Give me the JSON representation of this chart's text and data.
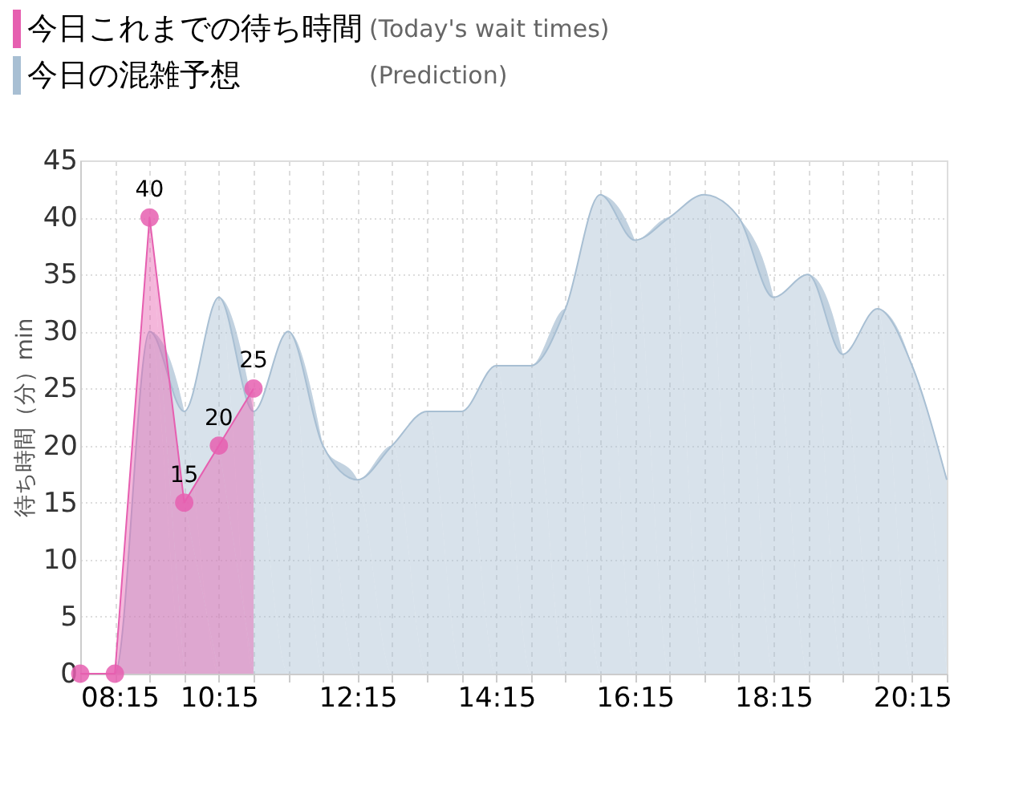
{
  "chart_data": {
    "type": "area",
    "ylabel": "待ち時間（分）min",
    "xlim": [
      8.25,
      20.75
    ],
    "xticks": [
      {
        "value": 8.25,
        "label": "08:15"
      },
      {
        "value": 8.75,
        "label": null
      },
      {
        "value": 9.25,
        "label": null
      },
      {
        "value": 9.75,
        "label": null
      },
      {
        "value": 10.25,
        "label": "10:15"
      },
      {
        "value": 10.75,
        "label": null
      },
      {
        "value": 11.25,
        "label": null
      },
      {
        "value": 11.75,
        "label": null
      },
      {
        "value": 12.25,
        "label": "12:15"
      },
      {
        "value": 12.75,
        "label": null
      },
      {
        "value": 13.25,
        "label": null
      },
      {
        "value": 13.75,
        "label": null
      },
      {
        "value": 14.25,
        "label": "14:15"
      },
      {
        "value": 14.75,
        "label": null
      },
      {
        "value": 15.25,
        "label": null
      },
      {
        "value": 15.75,
        "label": null
      },
      {
        "value": 16.25,
        "label": "16:15"
      },
      {
        "value": 16.75,
        "label": null
      },
      {
        "value": 17.25,
        "label": null
      },
      {
        "value": 17.75,
        "label": null
      },
      {
        "value": 18.25,
        "label": "18:15"
      },
      {
        "value": 18.75,
        "label": null
      },
      {
        "value": 19.25,
        "label": null
      },
      {
        "value": 19.75,
        "label": null
      },
      {
        "value": 20.25,
        "label": "20:15"
      },
      {
        "value": 20.75,
        "label": null
      }
    ],
    "ylim": [
      0,
      45
    ],
    "yticks": [
      0,
      5,
      10,
      15,
      20,
      25,
      30,
      35,
      40,
      45
    ],
    "grid": true,
    "legend": "top left",
    "marker": "circle",
    "annotations": [
      "(Today's wait times)",
      "(Prediction)"
    ],
    "series": [
      {
        "name": "今日の混雑予想",
        "color": "#a8bfd3",
        "marker": "none",
        "x": [
          8.25,
          8.75,
          9.25,
          9.75,
          10.25,
          10.75,
          11.25,
          11.75,
          12.25,
          12.75,
          13.25,
          13.75,
          14.25,
          14.75,
          15.25,
          15.75,
          16.25,
          16.75,
          17.25,
          17.75,
          18.25,
          18.75,
          19.25,
          19.75,
          20.25,
          20.75
        ],
        "values": [
          0,
          0,
          30,
          23,
          33,
          23,
          30,
          20,
          17,
          20,
          23,
          23,
          27,
          27,
          32,
          42,
          38,
          40,
          42,
          40,
          33,
          35,
          28,
          32,
          27,
          17
        ]
      },
      {
        "name": "今日これまでの待ち時間",
        "color": "#e65fb0",
        "x": [
          8.25,
          8.75,
          9.25,
          9.75,
          10.25,
          10.75
        ],
        "values": [
          0,
          0,
          40,
          15,
          20,
          25
        ],
        "value_labels": [
          null,
          null,
          "40",
          "15",
          "20",
          "25"
        ]
      }
    ]
  }
}
